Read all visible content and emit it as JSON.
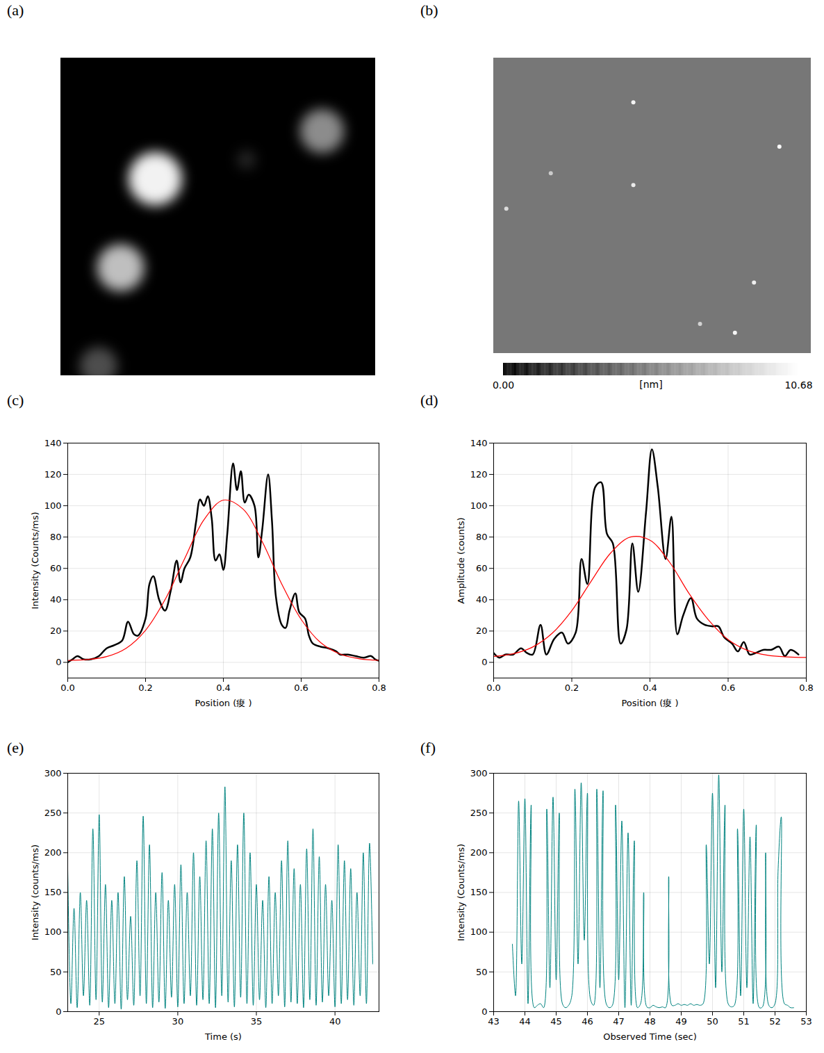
{
  "chart_data": [
    {
      "panel": "(a)",
      "type": "image",
      "tick_labels": false,
      "spots": {
        "x": [
          0.3,
          0.83,
          0.19,
          0.12,
          0.59
        ],
        "y": [
          0.38,
          0.23,
          0.66,
          0.97,
          0.32
        ],
        "size": [
          0.085,
          0.07,
          0.075,
          0.06,
          0.03
        ],
        "intensity": [
          0.95,
          0.55,
          0.75,
          0.3,
          0.15
        ]
      }
    },
    {
      "panel": "(b)",
      "type": "image",
      "tick_labels": false,
      "background": 5.0,
      "particles": {
        "x": [
          0.44,
          0.9,
          0.44,
          0.04,
          0.82,
          0.76,
          0.65,
          0.18
        ],
        "y": [
          0.15,
          0.3,
          0.43,
          0.51,
          0.76,
          0.93,
          0.9,
          0.39
        ],
        "height": [
          10.2,
          10.5,
          9.8,
          9.2,
          10.0,
          10.3,
          8.8,
          8.5
        ]
      },
      "colorbar": {
        "lim": [
          0,
          10.68
        ],
        "ticks": [
          {
            "value": 0,
            "label": "0.00"
          },
          {
            "value": 10.68,
            "label": "10.68"
          }
        ],
        "label": "[nm]"
      }
    },
    {
      "panel": "(c)",
      "type": "line",
      "grid": true,
      "xlabel": "Position (痠 )",
      "ylabel": "Intensity (Counts/ms)",
      "xlim": [
        0,
        0.8
      ],
      "xticks": [
        {
          "value": 0,
          "label": "0.0"
        },
        0.2,
        0.4,
        0.6,
        0.8
      ],
      "ylim": [
        -10,
        140
      ],
      "yticks": [
        0,
        20,
        40,
        60,
        80,
        100,
        120,
        140
      ],
      "series": [
        {
          "color": "#000000",
          "x": [
            0,
            0.0125,
            0.025,
            0.04,
            0.06,
            0.08,
            0.1,
            0.12,
            0.14,
            0.155,
            0.17,
            0.18,
            0.2,
            0.21,
            0.22,
            0.235,
            0.25,
            0.265,
            0.28,
            0.29,
            0.3,
            0.315,
            0.33,
            0.34,
            0.35,
            0.36,
            0.37,
            0.38,
            0.39,
            0.4,
            0.41,
            0.425,
            0.435,
            0.445,
            0.455,
            0.465,
            0.48,
            0.49,
            0.5,
            0.515,
            0.525,
            0.535,
            0.55,
            0.56,
            0.57,
            0.585,
            0.595,
            0.61,
            0.62,
            0.63,
            0.65,
            0.67,
            0.69,
            0.7,
            0.72,
            0.74,
            0.76,
            0.78,
            0.79,
            0.8
          ],
          "values": [
            0,
            2,
            4,
            2,
            2,
            4,
            9,
            11,
            14,
            26,
            18,
            17,
            28,
            50,
            55,
            40,
            33,
            46,
            65,
            51,
            60,
            67,
            90,
            104,
            100,
            106,
            92,
            65,
            69,
            59,
            82,
            127,
            110,
            122,
            102,
            107,
            100,
            67,
            85,
            120,
            90,
            42,
            24,
            22,
            33,
            44,
            32,
            28,
            17,
            12,
            10,
            9,
            7,
            5,
            5,
            4,
            3,
            4,
            2,
            1
          ]
        },
        {
          "color": "#ff0000",
          "x": [
            0,
            0.05,
            0.1,
            0.15,
            0.2,
            0.25,
            0.3,
            0.35,
            0.4,
            0.45,
            0.5,
            0.55,
            0.6,
            0.65,
            0.7,
            0.75,
            0.8
          ],
          "values": [
            1.2,
            1.8,
            3.7,
            9,
            20.5,
            40,
            66,
            91,
            103.6,
            98,
            77,
            50,
            27.4,
            12.6,
            5.3,
            2.3,
            1.3
          ]
        }
      ]
    },
    {
      "panel": "(d)",
      "type": "line",
      "grid": true,
      "xlabel": "Position (痠 )",
      "ylabel": "Amplitude (counts)",
      "xlim": [
        0,
        0.8
      ],
      "xticks": [
        {
          "value": 0,
          "label": "0.0"
        },
        0.2,
        0.4,
        0.6,
        0.8
      ],
      "ylim": [
        -10,
        140
      ],
      "yticks": [
        0,
        20,
        40,
        60,
        80,
        100,
        120,
        140
      ],
      "series": [
        {
          "color": "#000000",
          "x": [
            0,
            0.015,
            0.03,
            0.05,
            0.07,
            0.085,
            0.1,
            0.12,
            0.135,
            0.155,
            0.175,
            0.19,
            0.21,
            0.225,
            0.24,
            0.26,
            0.275,
            0.29,
            0.305,
            0.325,
            0.34,
            0.355,
            0.37,
            0.39,
            0.405,
            0.42,
            0.44,
            0.455,
            0.47,
            0.485,
            0.505,
            0.52,
            0.54,
            0.56,
            0.575,
            0.59,
            0.61,
            0.625,
            0.64,
            0.655,
            0.67,
            0.69,
            0.71,
            0.73,
            0.745,
            0.76,
            0.78
          ],
          "values": [
            6,
            3,
            5,
            5,
            9,
            6,
            5,
            24,
            5,
            15,
            19,
            12,
            19,
            66,
            50,
            112,
            115,
            82,
            76,
            12,
            21,
            76,
            45,
            96,
            136,
            112,
            66,
            93,
            18,
            30,
            41,
            28,
            24,
            23,
            23,
            16,
            12,
            7,
            13,
            5,
            6,
            8,
            8,
            10,
            4,
            8,
            5
          ]
        },
        {
          "color": "#ff0000",
          "x": [
            0,
            0.05,
            0.1,
            0.15,
            0.2,
            0.25,
            0.3,
            0.35,
            0.4,
            0.45,
            0.5,
            0.55,
            0.6,
            0.65,
            0.7,
            0.75,
            0.8
          ],
          "values": [
            3.8,
            5.5,
            9.8,
            18.6,
            33,
            52,
            70,
            80,
            78,
            64,
            44,
            27,
            14.5,
            7.6,
            4.6,
            3.5,
            3.1
          ]
        }
      ]
    },
    {
      "panel": "(e)",
      "type": "line",
      "grid": true,
      "xlabel": "Time (s)",
      "ylabel": "Intensity (counts/ms)",
      "xlim": [
        23,
        42.8
      ],
      "xticks": [
        25,
        30,
        35,
        40
      ],
      "ylim": [
        0,
        300
      ],
      "yticks": [
        0,
        50,
        100,
        150,
        200,
        250,
        300
      ],
      "series": [
        {
          "color": "#00837f",
          "x": [
            23,
            23.2,
            23.4,
            23.6,
            23.8,
            24,
            24.2,
            24.4,
            24.6,
            24.8,
            25,
            25.2,
            25.4,
            25.6,
            25.8,
            26,
            26.2,
            26.4,
            26.6,
            26.8,
            27,
            27.2,
            27.4,
            27.6,
            27.8,
            28,
            28.2,
            28.4,
            28.6,
            28.8,
            29,
            29.2,
            29.4,
            29.6,
            29.8,
            30,
            30.2,
            30.4,
            30.6,
            30.8,
            31,
            31.2,
            31.4,
            31.6,
            31.8,
            32,
            32.2,
            32.4,
            32.6,
            32.8,
            33,
            33.2,
            33.4,
            33.6,
            33.8,
            34,
            34.2,
            34.4,
            34.6,
            34.8,
            35,
            35.2,
            35.4,
            35.6,
            35.8,
            36,
            36.2,
            36.4,
            36.6,
            36.8,
            37,
            37.2,
            37.4,
            37.6,
            37.8,
            38,
            38.2,
            38.4,
            38.6,
            38.8,
            39,
            39.2,
            39.4,
            39.6,
            39.8,
            40,
            40.2,
            40.4,
            40.6,
            40.8,
            41,
            41.2,
            41.4,
            41.6,
            41.8,
            42,
            42.2,
            42.4
          ],
          "values": [
            180,
            10,
            130,
            5,
            150,
            20,
            140,
            8,
            230,
            15,
            248,
            12,
            160,
            5,
            140,
            10,
            150,
            3,
            170,
            15,
            120,
            8,
            190,
            20,
            246,
            10,
            210,
            5,
            150,
            12,
            175,
            4,
            140,
            18,
            160,
            6,
            185,
            10,
            150,
            20,
            200,
            8,
            170,
            15,
            215,
            10,
            230,
            5,
            250,
            20,
            283,
            12,
            190,
            6,
            210,
            18,
            250,
            10,
            200,
            8,
            160,
            15,
            140,
            5,
            170,
            10,
            150,
            20,
            190,
            6,
            215,
            12,
            180,
            10,
            160,
            5,
            205,
            15,
            230,
            8,
            195,
            12,
            160,
            20,
            140,
            6,
            210,
            10,
            190,
            15,
            180,
            8,
            150,
            20,
            200,
            10,
            212,
            60
          ]
        }
      ]
    },
    {
      "panel": "(f)",
      "type": "line",
      "grid": true,
      "xlabel": "Observed Time (sec)",
      "ylabel": "Intensity (Counts/ms)",
      "xlim": [
        43,
        53
      ],
      "xticks": [
        43,
        44,
        45,
        46,
        47,
        48,
        49,
        50,
        51,
        52,
        53
      ],
      "ylim": [
        0,
        300
      ],
      "yticks": [
        0,
        50,
        100,
        150,
        200,
        250,
        300
      ],
      "series": [
        {
          "color": "#00837f",
          "x": [
            43.6,
            43.7,
            43.8,
            43.9,
            44,
            44.1,
            44.2,
            44.3,
            44.4,
            44.5,
            44.6,
            44.7,
            44.8,
            44.9,
            45,
            45.1,
            45.2,
            45.3,
            45.4,
            45.5,
            45.6,
            45.7,
            45.8,
            45.9,
            46,
            46.1,
            46.2,
            46.3,
            46.4,
            46.5,
            46.6,
            46.7,
            46.8,
            46.9,
            47,
            47.1,
            47.2,
            47.3,
            47.4,
            47.5,
            47.6,
            47.7,
            47.8,
            47.9,
            48,
            48.1,
            48.2,
            48.3,
            48.4,
            48.5,
            48.6,
            48.7,
            48.8,
            48.9,
            49,
            49.1,
            49.2,
            49.3,
            49.4,
            49.5,
            49.6,
            49.7,
            49.8,
            49.9,
            50,
            50.1,
            50.2,
            50.3,
            50.4,
            50.5,
            50.6,
            50.7,
            50.8,
            50.9,
            51,
            51.1,
            51.2,
            51.3,
            51.4,
            51.5,
            51.6,
            51.7,
            51.8,
            51.9,
            52,
            52.1,
            52.2,
            52.3,
            52.4,
            52.5,
            52.6
          ],
          "values": [
            85,
            20,
            265,
            60,
            268,
            10,
            260,
            5,
            8,
            10,
            5,
            255,
            30,
            270,
            40,
            250,
            10,
            5,
            8,
            20,
            280,
            60,
            288,
            90,
            275,
            15,
            8,
            280,
            30,
            278,
            10,
            5,
            8,
            260,
            40,
            240,
            5,
            225,
            8,
            215,
            5,
            10,
            150,
            6,
            5,
            8,
            6,
            5,
            6,
            5,
            170,
            8,
            8,
            10,
            8,
            9,
            8,
            10,
            8,
            9,
            8,
            10,
            210,
            60,
            275,
            30,
            298,
            50,
            260,
            10,
            6,
            8,
            230,
            20,
            255,
            30,
            220,
            10,
            235,
            5,
            6,
            200,
            8,
            5,
            10,
            180,
            245,
            10,
            8,
            5,
            5
          ]
        }
      ]
    }
  ]
}
